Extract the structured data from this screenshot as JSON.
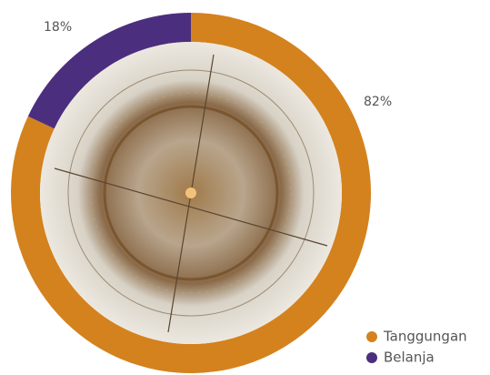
{
  "chart_data": {
    "type": "donut",
    "categories": [
      "Tanggungan",
      "Belanja"
    ],
    "values": [
      82,
      18
    ],
    "value_labels": [
      "82%",
      "18%"
    ],
    "colors": [
      "#d4821e",
      "#4b2f7e"
    ]
  }
}
